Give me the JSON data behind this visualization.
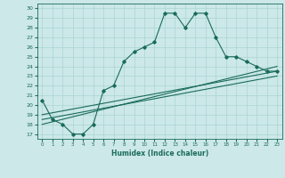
{
  "xlabel": "Humidex (Indice chaleur)",
  "ylabel": "",
  "xlim": [
    -0.5,
    23.5
  ],
  "ylim": [
    16.5,
    30.5
  ],
  "yticks": [
    17,
    18,
    19,
    20,
    21,
    22,
    23,
    24,
    25,
    26,
    27,
    28,
    29,
    30
  ],
  "xticks": [
    0,
    1,
    2,
    3,
    4,
    5,
    6,
    7,
    8,
    9,
    10,
    11,
    12,
    13,
    14,
    15,
    16,
    17,
    18,
    19,
    20,
    21,
    22,
    23
  ],
  "bg_color": "#cce8e8",
  "line_color": "#1a6b5a",
  "grid_color": "#aad4d4",
  "line1_x": [
    0,
    1,
    2,
    3,
    4,
    5,
    6,
    7,
    8,
    9,
    10,
    11,
    12,
    13,
    14,
    15,
    16,
    17,
    18,
    19,
    20,
    21,
    22,
    23
  ],
  "line1_y": [
    20.5,
    18.5,
    18.0,
    17.0,
    17.0,
    18.0,
    21.5,
    22.0,
    24.5,
    25.5,
    26.0,
    26.5,
    29.5,
    29.5,
    28.0,
    29.5,
    29.5,
    27.0,
    25.0,
    25.0,
    24.5,
    24.0,
    23.5,
    23.5
  ],
  "line2_x": [
    0,
    23
  ],
  "line2_y": [
    18.0,
    24.0
  ],
  "line3_x": [
    0,
    23
  ],
  "line3_y": [
    19.0,
    23.5
  ],
  "line4_x": [
    0,
    23
  ],
  "line4_y": [
    18.5,
    23.0
  ]
}
